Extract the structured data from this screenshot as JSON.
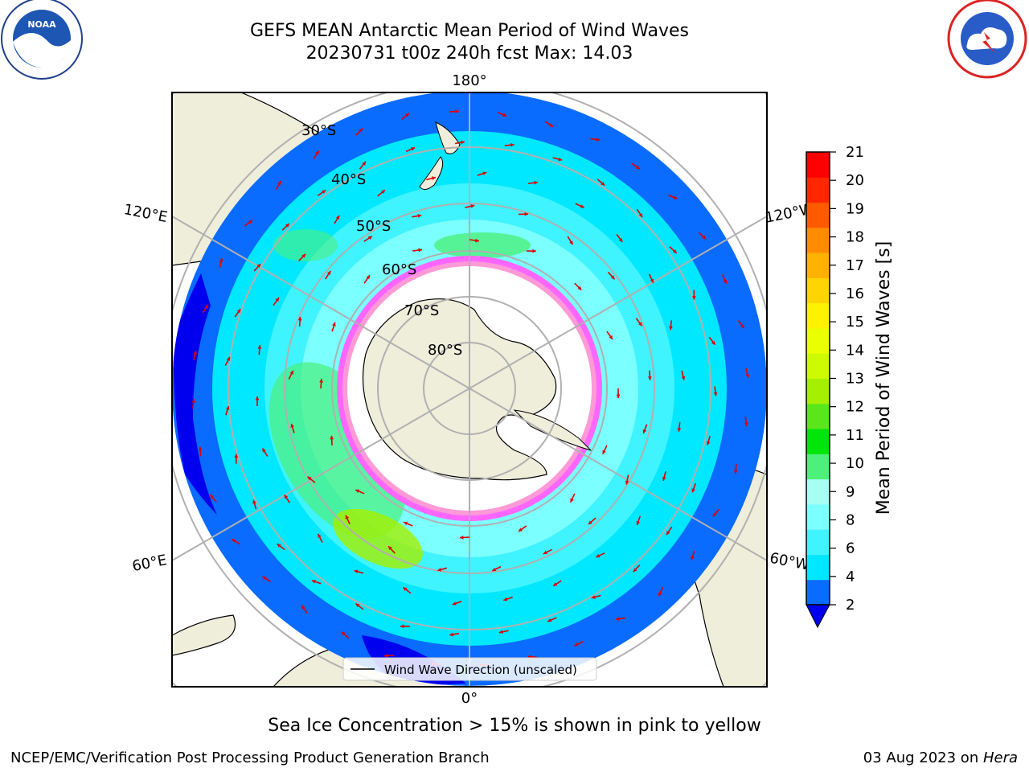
{
  "header": {
    "title_line1": "GEFS MEAN Antarctic Mean Period of Wind Waves",
    "title_line2": "20230731 t00z 240h fcst   Max: 14.03"
  },
  "map": {
    "meridian_labels": [
      "180°",
      "120°E",
      "120°W",
      "60°E",
      "60°W",
      "0°"
    ],
    "parallel_labels": [
      "30°S",
      "40°S",
      "50°S",
      "60°S",
      "70°S",
      "80°S"
    ],
    "legend_label": "Wind Wave Direction (unscaled)"
  },
  "colorbar": {
    "label": "Mean Period of Wind Waves [s]",
    "ticks": [
      "2",
      "4",
      "6",
      "8",
      "9",
      "10",
      "11",
      "12",
      "13",
      "14",
      "15",
      "16",
      "17",
      "18",
      "19",
      "20",
      "21"
    ],
    "colors": [
      "#0a6bff",
      "#00e8ff",
      "#3ff3ff",
      "#7bffff",
      "#a6fff2",
      "#4cf07a",
      "#00e60a",
      "#5ae61a",
      "#a5f000",
      "#cdfa00",
      "#eaff00",
      "#fff200",
      "#ffd400",
      "#ffb300",
      "#ff8c00",
      "#ff5a00",
      "#ff2600",
      "#ff0000"
    ],
    "under_color": "#0000ee"
  },
  "caption": "Sea Ice Concentration > 15% is shown in pink to yellow",
  "footer": {
    "left": "NCEP/EMC/Verification Post Processing Product Generation Branch",
    "right_date": "03 Aug 2023 on ",
    "right_host": "Hera"
  }
}
